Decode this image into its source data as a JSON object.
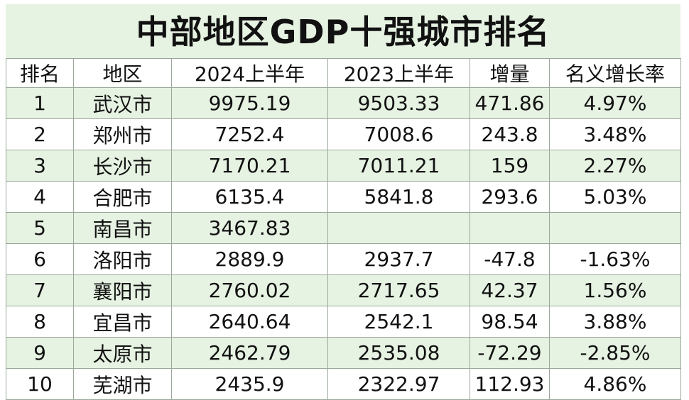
{
  "title": "中部地区GDP十强城市排名",
  "headers": [
    "排名",
    "地区",
    "2024上半年",
    "2023上半年",
    "增量",
    "名义增长率"
  ],
  "rows": [
    {
      "rank": "1",
      "city": "武汉市",
      "h2024": "9975.19",
      "h2023": "9503.33",
      "inc": "471.86",
      "rate": "4.97%"
    },
    {
      "rank": "2",
      "city": "郑州市",
      "h2024": "7252.4",
      "h2023": "7008.6",
      "inc": "243.8",
      "rate": "3.48%"
    },
    {
      "rank": "3",
      "city": "长沙市",
      "h2024": "7170.21",
      "h2023": "7011.21",
      "inc": "159",
      "rate": "2.27%"
    },
    {
      "rank": "4",
      "city": "合肥市",
      "h2024": "6135.4",
      "h2023": "5841.8",
      "inc": "293.6",
      "rate": "5.03%"
    },
    {
      "rank": "5",
      "city": "南昌市",
      "h2024": "3467.83",
      "h2023": "",
      "inc": "",
      "rate": ""
    },
    {
      "rank": "6",
      "city": "洛阳市",
      "h2024": "2889.9",
      "h2023": "2937.7",
      "inc": "-47.8",
      "rate": "-1.63%"
    },
    {
      "rank": "7",
      "city": "襄阳市",
      "h2024": "2760.02",
      "h2023": "2717.65",
      "inc": "42.37",
      "rate": "1.56%"
    },
    {
      "rank": "8",
      "city": "宜昌市",
      "h2024": "2640.64",
      "h2023": "2542.1",
      "inc": "98.54",
      "rate": "3.88%"
    },
    {
      "rank": "9",
      "city": "太原市",
      "h2024": "2462.79",
      "h2023": "2535.08",
      "inc": "-72.29",
      "rate": "-2.85%"
    },
    {
      "rank": "10",
      "city": "芜湖市",
      "h2024": "2435.9",
      "h2023": "2322.97",
      "inc": "112.93",
      "rate": "4.86%"
    }
  ],
  "colors": {
    "odd_row": "#e6f2e2",
    "even_row": "#ffffff",
    "grid": "#9aa79a"
  }
}
